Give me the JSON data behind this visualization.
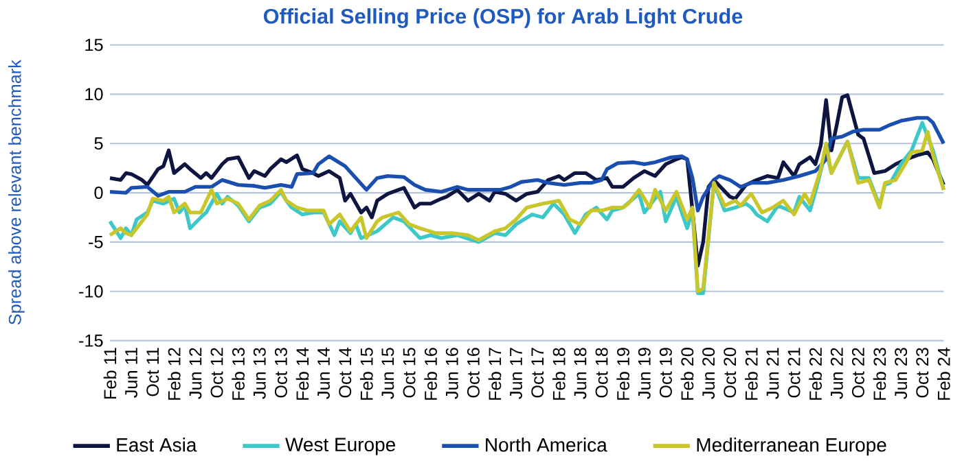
{
  "chart_data": {
    "type": "line",
    "title": "Official Selling Price (OSP) for Arab Light Crude",
    "ylabel": "Spread above relevant benchmark",
    "xlim": [
      "2011-02",
      "2024-02"
    ],
    "ylim": [
      -15,
      15
    ],
    "yticks": [
      -15,
      -10,
      -5,
      0,
      5,
      10,
      15
    ],
    "grid": "y",
    "legend": "bottom",
    "xticks": [
      {
        "value": "2011-02",
        "label": "Feb 11"
      },
      {
        "value": "2011-06",
        "label": "Jun 11"
      },
      {
        "value": "2011-10",
        "label": "Oct 11"
      },
      {
        "value": "2012-02",
        "label": "Feb 12"
      },
      {
        "value": "2012-06",
        "label": "Jun 12"
      },
      {
        "value": "2012-10",
        "label": "Oct 12"
      },
      {
        "value": "2013-02",
        "label": "Feb 13"
      },
      {
        "value": "2013-06",
        "label": "Jun 13"
      },
      {
        "value": "2013-10",
        "label": "Oct 13"
      },
      {
        "value": "2014-02",
        "label": "Feb 14"
      },
      {
        "value": "2014-06",
        "label": "Jun 14"
      },
      {
        "value": "2014-10",
        "label": "Oct 14"
      },
      {
        "value": "2015-02",
        "label": "Feb 15"
      },
      {
        "value": "2015-06",
        "label": "Jun 15"
      },
      {
        "value": "2015-10",
        "label": "Oct 15"
      },
      {
        "value": "2016-02",
        "label": "Feb 16"
      },
      {
        "value": "2016-06",
        "label": "Jun 16"
      },
      {
        "value": "2016-10",
        "label": "Oct 16"
      },
      {
        "value": "2017-02",
        "label": "Feb 17"
      },
      {
        "value": "2017-06",
        "label": "Jun 17"
      },
      {
        "value": "2017-10",
        "label": "Oct 17"
      },
      {
        "value": "2018-02",
        "label": "Feb 18"
      },
      {
        "value": "2018-06",
        "label": "Jun 18"
      },
      {
        "value": "2018-10",
        "label": "Oct 18"
      },
      {
        "value": "2019-02",
        "label": "Feb 19"
      },
      {
        "value": "2019-06",
        "label": "Jun 19"
      },
      {
        "value": "2019-10",
        "label": "Oct 19"
      },
      {
        "value": "2020-02",
        "label": "Feb 20"
      },
      {
        "value": "2020-06",
        "label": "Jun 20"
      },
      {
        "value": "2020-10",
        "label": "Oct 20"
      },
      {
        "value": "2021-02",
        "label": "Feb 21"
      },
      {
        "value": "2021-06",
        "label": "Jun 21"
      },
      {
        "value": "2021-10",
        "label": "Oct 21"
      },
      {
        "value": "2022-02",
        "label": "Feb 22"
      },
      {
        "value": "2022-06",
        "label": "Jun 22"
      },
      {
        "value": "2022-10",
        "label": "Oct 22"
      },
      {
        "value": "2023-02",
        "label": "Feb 23"
      },
      {
        "value": "2023-06",
        "label": "Jun 23"
      },
      {
        "value": "2023-10",
        "label": "Oct 23"
      },
      {
        "value": "2024-02",
        "label": "Feb 24"
      }
    ],
    "series": [
      {
        "name": "East Asia",
        "color": "#0d1540",
        "x": [
          "2011-02",
          "2011-04",
          "2011-05",
          "2011-06",
          "2011-08",
          "2011-09",
          "2011-11",
          "2011-12",
          "2012-01",
          "2012-02",
          "2012-04",
          "2012-05",
          "2012-07",
          "2012-08",
          "2012-09",
          "2012-11",
          "2012-12",
          "2013-02",
          "2013-04",
          "2013-05",
          "2013-07",
          "2013-08",
          "2013-10",
          "2013-11",
          "2014-01",
          "2014-02",
          "2014-04",
          "2014-05",
          "2014-07",
          "2014-09",
          "2014-10",
          "2014-11",
          "2015-01",
          "2015-02",
          "2015-03",
          "2015-04",
          "2015-06",
          "2015-08",
          "2015-09",
          "2015-11",
          "2015-12",
          "2016-02",
          "2016-04",
          "2016-05",
          "2016-07",
          "2016-09",
          "2016-11",
          "2017-01",
          "2017-02",
          "2017-04",
          "2017-06",
          "2017-08",
          "2017-10",
          "2017-12",
          "2018-02",
          "2018-03",
          "2018-05",
          "2018-07",
          "2018-09",
          "2018-11",
          "2018-12",
          "2019-02",
          "2019-04",
          "2019-06",
          "2019-08",
          "2019-10",
          "2019-12",
          "2020-01",
          "2020-02",
          "2020-03",
          "2020-04",
          "2020-05",
          "2020-06",
          "2020-07",
          "2020-10",
          "2020-11",
          "2021-01",
          "2021-03",
          "2021-05",
          "2021-07",
          "2021-08",
          "2021-10",
          "2021-11",
          "2022-01",
          "2022-02",
          "2022-03",
          "2022-04",
          "2022-05",
          "2022-06",
          "2022-07",
          "2022-08",
          "2022-10",
          "2022-11",
          "2023-01",
          "2023-03",
          "2023-05",
          "2023-07",
          "2023-09",
          "2023-11",
          "2023-12",
          "2024-02"
        ],
        "values": [
          1.5,
          1.3,
          2,
          1.9,
          1.3,
          0.8,
          2.4,
          2.7,
          4.3,
          2,
          2.9,
          2.4,
          1.5,
          2,
          1.5,
          2.9,
          3.4,
          3.6,
          1.5,
          2.2,
          1.7,
          2.4,
          3.4,
          3.1,
          3.8,
          2.4,
          2,
          1.7,
          2.2,
          1.5,
          -0.8,
          -0.1,
          -2,
          -1.5,
          -2.5,
          -0.8,
          -0.1,
          0.3,
          0.5,
          -1.5,
          -1.1,
          -1.1,
          -0.6,
          -0.4,
          0.3,
          -0.8,
          -0.1,
          -0.8,
          0.1,
          -0.1,
          -0.8,
          -0.1,
          0.1,
          1.3,
          1.7,
          1.3,
          2,
          2,
          1.3,
          1.5,
          0.6,
          0.6,
          1.5,
          2.2,
          1.7,
          2.9,
          3.4,
          3.6,
          3.4,
          -1.8,
          -7.4,
          -5,
          0.6,
          1.3,
          -0.4,
          -0.6,
          0.8,
          1.3,
          1.7,
          1.5,
          3.1,
          1.7,
          2.9,
          3.6,
          2.9,
          4.8,
          9.4,
          4.3,
          6.9,
          9.7,
          9.9,
          5.9,
          5.5,
          2,
          2.2,
          2.9,
          3.4,
          3.8,
          4.1,
          3.4,
          0.8
        ]
      },
      {
        "name": "West Europe",
        "color": "#3cc8c8",
        "x": [
          "2011-02",
          "2011-04",
          "2011-05",
          "2011-06",
          "2011-07",
          "2011-09",
          "2011-10",
          "2011-12",
          "2012-02",
          "2012-03",
          "2012-04",
          "2012-05",
          "2012-07",
          "2012-08",
          "2012-10",
          "2012-11",
          "2012-12",
          "2013-02",
          "2013-04",
          "2013-06",
          "2013-08",
          "2013-10",
          "2013-11",
          "2013-12",
          "2014-02",
          "2014-04",
          "2014-06",
          "2014-08",
          "2014-09",
          "2014-11",
          "2014-12",
          "2015-01",
          "2015-04",
          "2015-07",
          "2015-09",
          "2015-12",
          "2016-02",
          "2016-04",
          "2016-07",
          "2016-11",
          "2017-02",
          "2017-04",
          "2017-06",
          "2017-09",
          "2017-11",
          "2018-01",
          "2018-03",
          "2018-05",
          "2018-07",
          "2018-09",
          "2018-11",
          "2018-12",
          "2019-02",
          "2019-05",
          "2019-06",
          "2019-08",
          "2019-09",
          "2019-10",
          "2019-12",
          "2020-02",
          "2020-03",
          "2020-04",
          "2020-05",
          "2020-07",
          "2020-09",
          "2020-11",
          "2021-01",
          "2021-02",
          "2021-03",
          "2021-05",
          "2021-07",
          "2021-10",
          "2021-11",
          "2022-01",
          "2022-02",
          "2022-04",
          "2022-05",
          "2022-08",
          "2022-10",
          "2022-12",
          "2023-02",
          "2023-03",
          "2023-04",
          "2023-06",
          "2023-08",
          "2023-10",
          "2023-11",
          "2023-12",
          "2024-02"
        ],
        "values": [
          -2.9,
          -4.6,
          -3.6,
          -4.3,
          -2.7,
          -2,
          -0.8,
          -1.1,
          -0.6,
          -2,
          -1.3,
          -3.6,
          -2.5,
          -2,
          -0.1,
          -1.1,
          -0.4,
          -1.3,
          -2.9,
          -1.5,
          -1.1,
          0.1,
          -0.8,
          -1.5,
          -2.2,
          -2,
          -2,
          -4.3,
          -2.9,
          -4.1,
          -3.2,
          -4.6,
          -3.9,
          -2.5,
          -2.9,
          -4.6,
          -4.3,
          -4.6,
          -4.3,
          -5,
          -4.1,
          -4.3,
          -3.2,
          -2.2,
          -2.5,
          -1.1,
          -2.2,
          -4.1,
          -2.2,
          -1.5,
          -2.7,
          -1.8,
          -1.5,
          -0.1,
          -2,
          -0.6,
          0.1,
          -2.9,
          -0.4,
          -3.6,
          -1.8,
          -10.2,
          -10.2,
          1,
          -1.8,
          -1.5,
          -1.1,
          -1.5,
          -2.2,
          -2.9,
          -1.3,
          -2,
          -0.4,
          -1.8,
          0.1,
          4.3,
          2,
          5.2,
          1.5,
          1.5,
          -1.3,
          0.8,
          1,
          2.9,
          4.3,
          7.1,
          5.7,
          4.3,
          0.3
        ]
      },
      {
        "name": "North America",
        "color": "#1a4fb0",
        "x": [
          "2011-02",
          "2011-05",
          "2011-06",
          "2011-09",
          "2011-11",
          "2012-01",
          "2012-04",
          "2012-06",
          "2012-09",
          "2012-11",
          "2013-02",
          "2013-05",
          "2013-07",
          "2013-10",
          "2013-12",
          "2014-01",
          "2014-04",
          "2014-05",
          "2014-07",
          "2014-10",
          "2014-12",
          "2015-02",
          "2015-04",
          "2015-06",
          "2015-09",
          "2015-11",
          "2016-01",
          "2016-04",
          "2016-07",
          "2016-09",
          "2016-12",
          "2017-03",
          "2017-05",
          "2017-07",
          "2017-10",
          "2017-12",
          "2018-03",
          "2018-06",
          "2018-08",
          "2018-10",
          "2018-11",
          "2019-01",
          "2019-04",
          "2019-06",
          "2019-08",
          "2019-11",
          "2020-01",
          "2020-02",
          "2020-03",
          "2020-04",
          "2020-05",
          "2020-07",
          "2020-08",
          "2020-10",
          "2020-12",
          "2021-02",
          "2021-05",
          "2021-08",
          "2021-11",
          "2022-02",
          "2022-04",
          "2022-05",
          "2022-07",
          "2022-09",
          "2022-11",
          "2023-02",
          "2023-04",
          "2023-06",
          "2023-09",
          "2023-11",
          "2023-12",
          "2024-02"
        ],
        "values": [
          0.1,
          0,
          0.5,
          0.6,
          -0.3,
          0.1,
          0.1,
          0.6,
          0.6,
          1.3,
          0.8,
          0.7,
          0.5,
          0.8,
          0.6,
          1.9,
          2,
          2.9,
          3.7,
          2.7,
          1.5,
          0.3,
          1.5,
          1.7,
          1.6,
          0.8,
          0.3,
          0.1,
          0.6,
          0.3,
          0.3,
          0.3,
          0.6,
          1.1,
          1.3,
          1,
          0.8,
          1,
          1,
          1.3,
          2.4,
          3,
          3.1,
          2.9,
          3.1,
          3.6,
          3.7,
          3.4,
          1.5,
          -1.8,
          -0.4,
          1.3,
          1.7,
          1.3,
          0.6,
          1,
          1,
          1.3,
          1.7,
          2.2,
          3.4,
          5.5,
          5.7,
          6.2,
          6.4,
          6.4,
          6.9,
          7.3,
          7.6,
          7.6,
          7.1,
          5
        ]
      },
      {
        "name": "Mediterranean Europe",
        "color": "#c9c62b",
        "x": [
          "2011-02",
          "2011-04",
          "2011-05",
          "2011-06",
          "2011-08",
          "2011-09",
          "2011-10",
          "2011-12",
          "2012-01",
          "2012-02",
          "2012-04",
          "2012-05",
          "2012-07",
          "2012-09",
          "2012-10",
          "2012-12",
          "2013-02",
          "2013-04",
          "2013-06",
          "2013-08",
          "2013-10",
          "2013-11",
          "2014-01",
          "2014-03",
          "2014-06",
          "2014-07",
          "2014-09",
          "2014-11",
          "2015-01",
          "2015-02",
          "2015-04",
          "2015-05",
          "2015-08",
          "2015-10",
          "2015-12",
          "2016-03",
          "2016-06",
          "2016-09",
          "2016-11",
          "2017-02",
          "2017-04",
          "2017-06",
          "2017-08",
          "2017-11",
          "2018-02",
          "2018-04",
          "2018-06",
          "2018-08",
          "2018-10",
          "2018-12",
          "2019-02",
          "2019-03",
          "2019-05",
          "2019-07",
          "2019-08",
          "2019-10",
          "2019-12",
          "2020-02",
          "2020-03",
          "2020-04",
          "2020-05",
          "2020-07",
          "2020-09",
          "2020-11",
          "2020-12",
          "2021-02",
          "2021-04",
          "2021-06",
          "2021-08",
          "2021-10",
          "2021-12",
          "2022-01",
          "2022-03",
          "2022-04",
          "2022-05",
          "2022-08",
          "2022-10",
          "2022-12",
          "2023-02",
          "2023-03",
          "2023-05",
          "2023-07",
          "2023-08",
          "2023-10",
          "2023-11",
          "2023-12",
          "2024-02"
        ],
        "values": [
          -4.3,
          -3.6,
          -4.1,
          -4.3,
          -2.9,
          -2.2,
          -0.6,
          -0.8,
          -0.4,
          -2,
          -1.1,
          -2,
          -2,
          0.3,
          -1.1,
          -0.6,
          -1.1,
          -2.7,
          -1.3,
          -0.8,
          0.3,
          -0.8,
          -1.5,
          -1.8,
          -1.8,
          -3.2,
          -2.2,
          -3.9,
          -2.5,
          -4.6,
          -2.9,
          -2.5,
          -2,
          -3.2,
          -3.6,
          -4.1,
          -4.1,
          -4.3,
          -4.8,
          -3.9,
          -3.6,
          -2.7,
          -1.5,
          -1.1,
          -0.8,
          -2.7,
          -3.2,
          -1.8,
          -1.8,
          -1.5,
          -1.5,
          -1.1,
          0.3,
          -1.5,
          0.3,
          -1.8,
          0.1,
          -2.7,
          -1.5,
          -10,
          -9.7,
          1,
          -1.3,
          -0.8,
          -1.3,
          -0.1,
          -2,
          -1.5,
          -0.8,
          -2.2,
          -0.1,
          -1.1,
          2.4,
          5,
          2,
          5.2,
          1,
          1.3,
          -1.5,
          1,
          1.3,
          3.1,
          4.1,
          4.3,
          6.2,
          3.8,
          0.3
        ]
      }
    ]
  }
}
